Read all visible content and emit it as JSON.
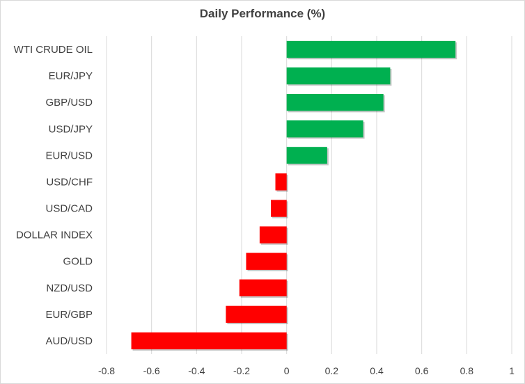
{
  "chart_data": {
    "type": "bar",
    "orientation": "horizontal",
    "title": "Daily Performance (%)",
    "xlabel": "",
    "ylabel": "",
    "xlim": [
      -0.8,
      1
    ],
    "ticks": [
      "-0.8",
      "-0.6",
      "-0.4",
      "-0.2",
      "0",
      "0.2",
      "0.4",
      "0.6",
      "0.8",
      "1"
    ],
    "tick_values": [
      -0.8,
      -0.6,
      -0.4,
      -0.2,
      0,
      0.2,
      0.4,
      0.6,
      0.8,
      1
    ],
    "grid": true,
    "categories": [
      "WTI CRUDE OIL",
      "EUR/JPY",
      "GBP/USD",
      "USD/JPY",
      "EUR/USD",
      "USD/CHF",
      "USD/CAD",
      "DOLLAR INDEX",
      "GOLD",
      "NZD/USD",
      "EUR/GBP",
      "AUD/USD"
    ],
    "values": [
      0.75,
      0.46,
      0.43,
      0.34,
      0.18,
      -0.05,
      -0.07,
      -0.12,
      -0.18,
      -0.21,
      -0.27,
      -0.69
    ],
    "colors": {
      "positive": "#00b050",
      "negative": "#ff0000",
      "grid": "#d9d9d9",
      "text": "#404040"
    }
  }
}
